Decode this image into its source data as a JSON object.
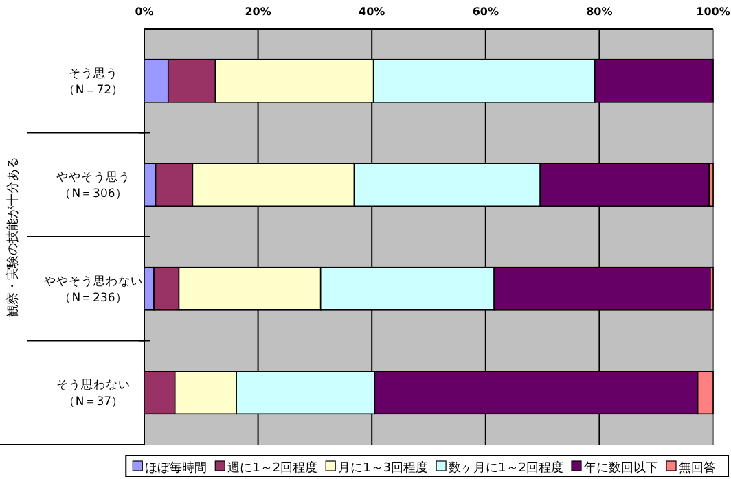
{
  "chart_data": {
    "type": "bar",
    "orientation": "horizontal",
    "stacked": true,
    "grid": "x",
    "legend": "bottom",
    "ylabel": "観察・実験の技能が十分ある",
    "categories": [
      "そう思う（N＝72）",
      "ややそう思う（N＝306）",
      "ややそう思わない（N＝236）",
      "そう思わない（N＝37）"
    ],
    "xlim": [
      0,
      100
    ],
    "xticks": [
      {
        "value": 0,
        "label": "0%"
      },
      {
        "value": 20,
        "label": "20%"
      },
      {
        "value": 40,
        "label": "40%"
      },
      {
        "value": 60,
        "label": "60%"
      },
      {
        "value": 80,
        "label": "80%"
      },
      {
        "value": 100,
        "label": "100%"
      }
    ],
    "series": [
      {
        "name": "ほぼ毎時間",
        "color": "#9999ff",
        "values": [
          4.2,
          2.0,
          1.7,
          0
        ]
      },
      {
        "name": "週に1～2回程度",
        "color": "#993366",
        "values": [
          8.3,
          6.5,
          4.4,
          5.4
        ]
      },
      {
        "name": "月に1～3回程度",
        "color": "#ffffcc",
        "values": [
          27.8,
          28.4,
          24.9,
          10.8
        ]
      },
      {
        "name": "数ヶ月に1～2回程度",
        "color": "#ccffff",
        "values": [
          38.9,
          32.7,
          30.5,
          24.3
        ]
      },
      {
        "name": "年に数回以下",
        "color": "#660066",
        "values": [
          20.8,
          29.7,
          38.0,
          56.8
        ]
      },
      {
        "name": "無回答",
        "color": "#ff8080",
        "values": [
          0,
          0.7,
          0.5,
          2.7
        ]
      }
    ]
  }
}
